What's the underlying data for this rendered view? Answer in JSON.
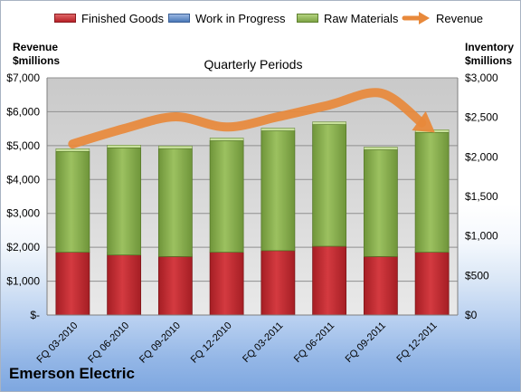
{
  "chart_data": {
    "type": "bar",
    "stacked": true,
    "title": "Quarterly Periods",
    "company": "Emerson Electric",
    "categories": [
      "FQ 03-2010",
      "FQ 06-2010",
      "FQ 09-2010",
      "FQ 12-2010",
      "FQ 03-2011",
      "FQ 06-2011",
      "FQ 09-2011",
      "FQ 12-2011"
    ],
    "left_axis": {
      "label_line1": "Revenue",
      "label_line2": "$millions",
      "ylim": [
        0,
        7000
      ],
      "ticks": [
        0,
        1000,
        2000,
        3000,
        4000,
        5000,
        6000,
        7000
      ],
      "tick_labels": [
        "$-",
        "$1,000",
        "$2,000",
        "$3,000",
        "$4,000",
        "$5,000",
        "$6,000",
        "$7,000"
      ]
    },
    "right_axis": {
      "label_line1": "Inventory",
      "label_line2": "$millions",
      "ylim": [
        0,
        3000
      ],
      "ticks": [
        0,
        500,
        1000,
        1500,
        2000,
        2500,
        3000
      ],
      "tick_labels": [
        "$0",
        "$500",
        "$1,000",
        "$1,500",
        "$2,000",
        "$2,500",
        "$3,000"
      ]
    },
    "series": [
      {
        "name": "Finished Goods",
        "axis": "right",
        "color": "#c0282f",
        "values": [
          795,
          760,
          740,
          795,
          815,
          870,
          740,
          795
        ]
      },
      {
        "name": "Work in Progress",
        "axis": "right",
        "color": "#4f81bd",
        "values": [
          0,
          0,
          0,
          0,
          0,
          0,
          0,
          0
        ]
      },
      {
        "name": "Raw Materials",
        "axis": "right",
        "color": "#8db255",
        "values": [
          1275,
          1355,
          1365,
          1410,
          1515,
          1540,
          1350,
          1515
        ]
      }
    ],
    "line_series": {
      "name": "Revenue",
      "axis": "left",
      "color": "#e8893b",
      "values": [
        5050,
        5500,
        5850,
        5550,
        5850,
        6200,
        6550,
        5450
      ]
    },
    "grid": true,
    "legend_position": "top"
  }
}
